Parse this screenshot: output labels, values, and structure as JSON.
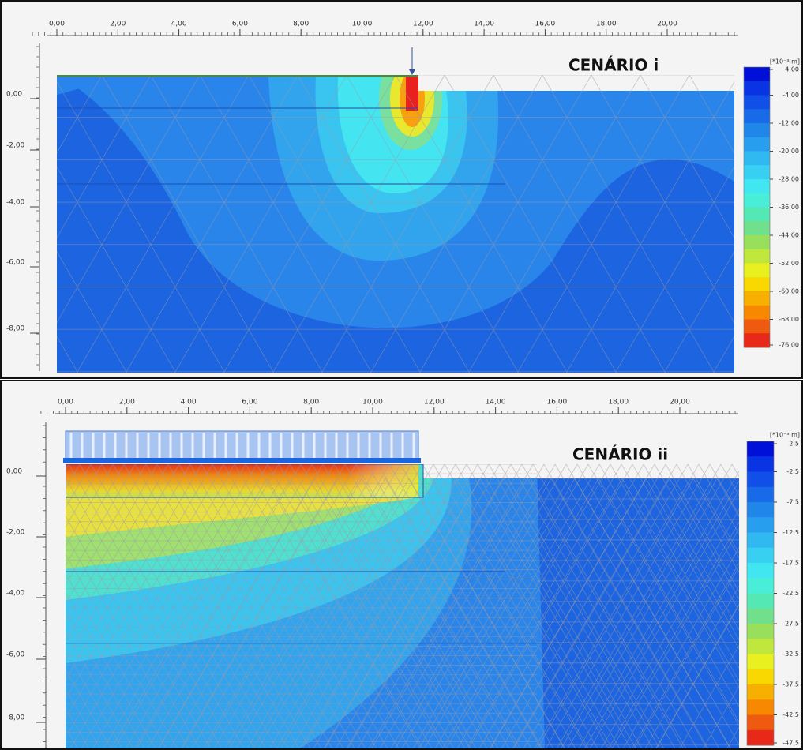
{
  "panels": [
    {
      "title": "CENÁRIO i",
      "x_ticks": [
        "0,00",
        "2,00",
        "4,00",
        "6,00",
        "8,00",
        "10,00",
        "12,00",
        "14,00",
        "16,00",
        "18,00",
        "20,00"
      ],
      "y_ticks": [
        "0,00",
        "-2,00",
        "-4,00",
        "-6,00",
        "-8,00"
      ],
      "legend_unit": "[*10⁻³ m]",
      "legend_labels": [
        "4,00",
        "-4,00",
        "-12,00",
        "-20,00",
        "-28,00",
        "-36,00",
        "-44,00",
        "-52,00",
        "-60,00",
        "-68,00",
        "-76,00"
      ]
    },
    {
      "title": "CENÁRIO ii",
      "x_ticks": [
        "0,00",
        "2,00",
        "4,00",
        "6,00",
        "8,00",
        "10,00",
        "12,00",
        "14,00",
        "16,00",
        "18,00",
        "20,00"
      ],
      "y_ticks": [
        "0,00",
        "-2,00",
        "-4,00",
        "-6,00",
        "-8,00"
      ],
      "legend_unit": "[*10⁻³ m]",
      "legend_labels": [
        "2,5",
        "-2,5",
        "-7,5",
        "-12,5",
        "-17,5",
        "-22,5",
        "-27,5",
        "-32,5",
        "-37,5",
        "-42,5",
        "-47,5"
      ]
    }
  ]
}
